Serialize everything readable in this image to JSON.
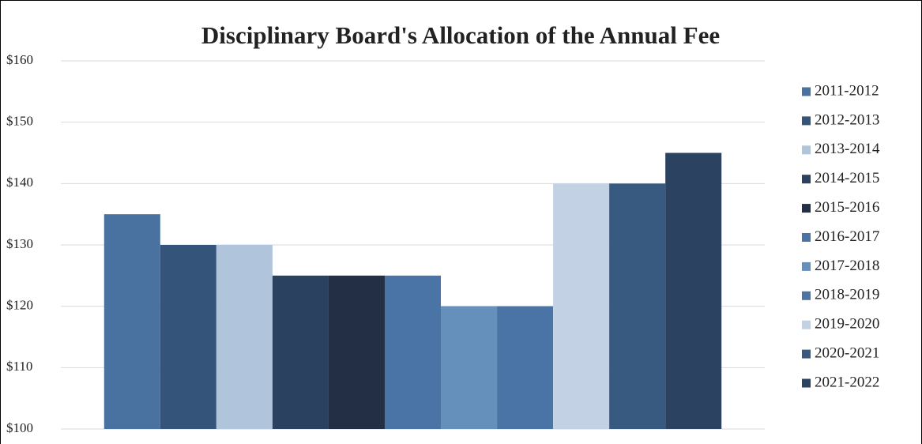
{
  "chart_data": {
    "type": "bar",
    "title": "Disciplinary Board's Allocation of the Annual Fee",
    "categories": [
      null
    ],
    "series": [
      {
        "name": "2011-2012",
        "color": "#4a72a0",
        "values": [
          135
        ]
      },
      {
        "name": "2012-2013",
        "color": "#34547a",
        "values": [
          130
        ]
      },
      {
        "name": "2013-2014",
        "color": "#b0c4dc",
        "values": [
          130
        ]
      },
      {
        "name": "2014-2015",
        "color": "#2a4260",
        "values": [
          125
        ]
      },
      {
        "name": "2015-2016",
        "color": "#222f45",
        "values": [
          125
        ]
      },
      {
        "name": "2016-2017",
        "color": "#4a74a6",
        "values": [
          125
        ]
      },
      {
        "name": "2017-2018",
        "color": "#6690bc",
        "values": [
          120
        ]
      },
      {
        "name": "2018-2019",
        "color": "#4a74a6",
        "values": [
          120
        ]
      },
      {
        "name": "2019-2020",
        "color": "#c2d2e4",
        "values": [
          140
        ]
      },
      {
        "name": "2020-2021",
        "color": "#385a80",
        "values": [
          140
        ]
      },
      {
        "name": "2021-2022",
        "color": "#2b4260",
        "values": [
          145
        ]
      }
    ],
    "ylim": [
      100,
      160
    ],
    "yticks": [
      {
        "value": 100,
        "label": "$100"
      },
      {
        "value": 110,
        "label": "$110"
      },
      {
        "value": 120,
        "label": "$120"
      },
      {
        "value": 130,
        "label": "$130"
      },
      {
        "value": 140,
        "label": "$140"
      },
      {
        "value": 150,
        "label": "$150"
      },
      {
        "value": 160,
        "label": "$160"
      }
    ],
    "grid": true,
    "legend": "right"
  }
}
